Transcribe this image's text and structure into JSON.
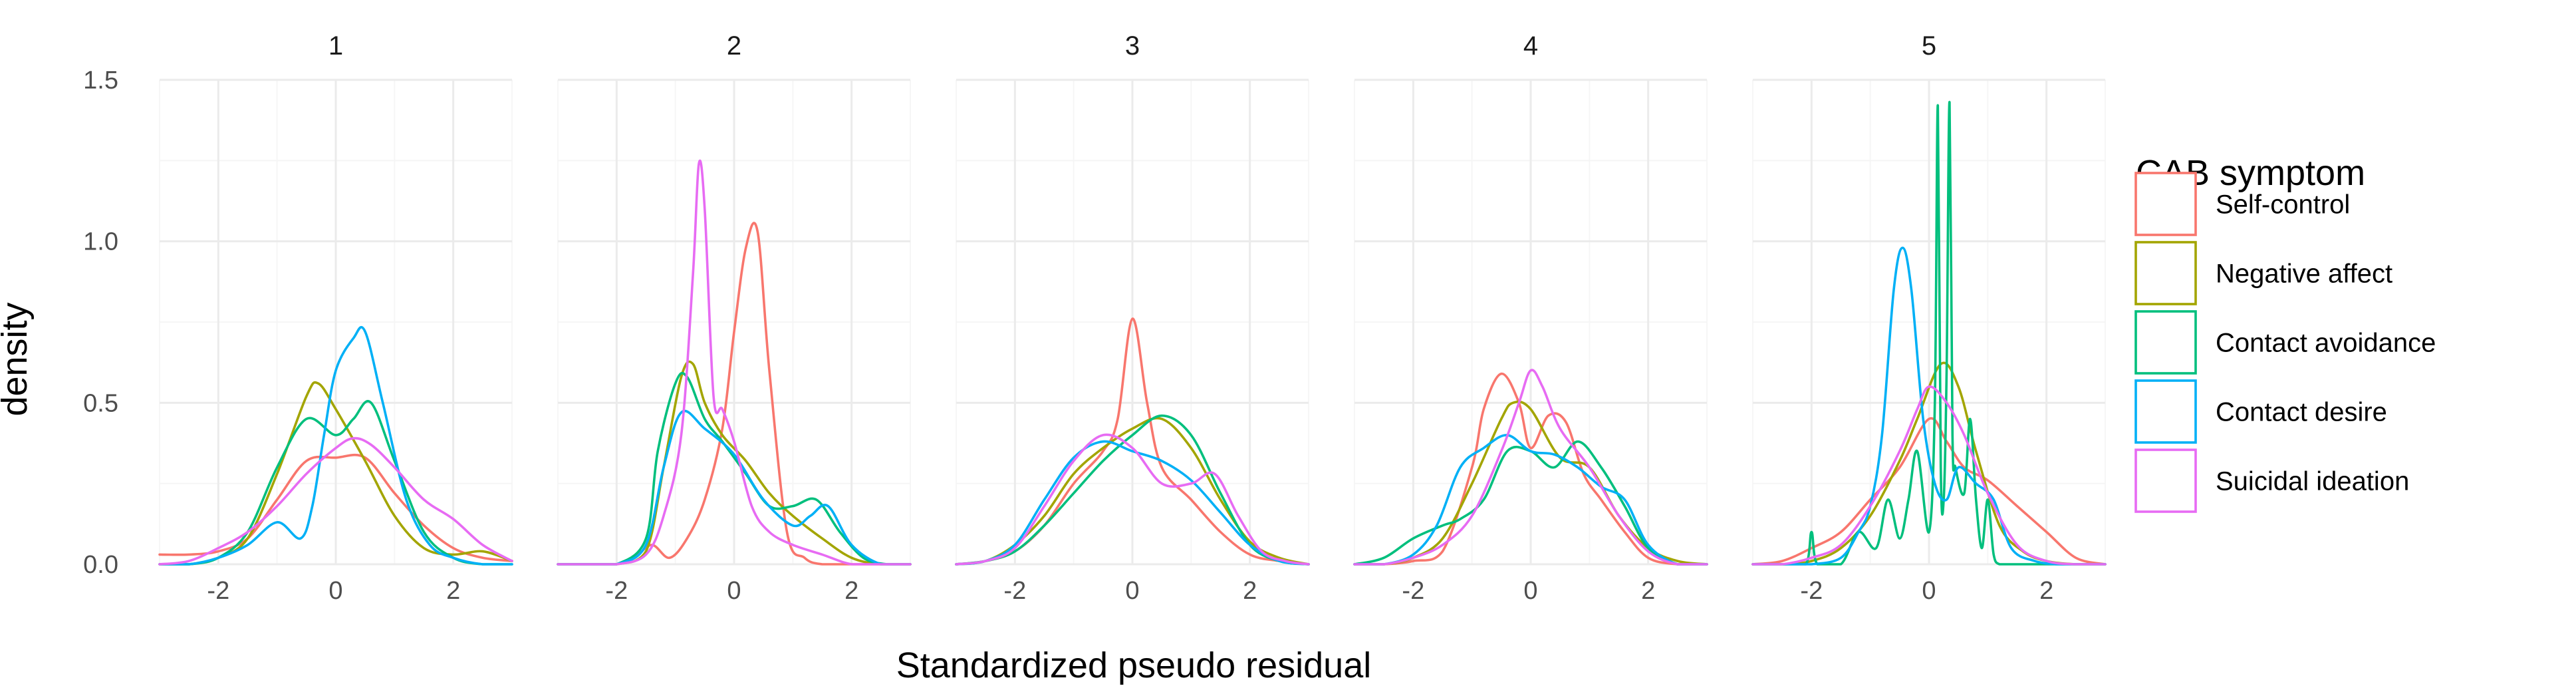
{
  "chart_data": {
    "type": "line",
    "xlabel": "Standardized pseudo residual",
    "ylabel": "density",
    "xlim": [
      -3,
      3
    ],
    "ylim": [
      0,
      1.5
    ],
    "x_ticks": [
      -2,
      0,
      2
    ],
    "x_tick_labels": [
      "-2",
      "0",
      "2"
    ],
    "y_ticks": [
      0,
      0.5,
      1.0,
      1.5
    ],
    "y_tick_labels": [
      "0.0",
      "0.5",
      "1.0",
      "1.5"
    ],
    "grid": true,
    "legend": {
      "title": "CAB symptom",
      "placement": "right",
      "entries": [
        "Self-control",
        "Negative affect",
        "Contact avoidance",
        "Contact desire",
        "Suicidal ideation"
      ]
    },
    "colors": {
      "Self-control": "#F8766D",
      "Negative affect": "#A3A500",
      "Contact avoidance": "#00BF7D",
      "Contact desire": "#00B0F6",
      "Suicidal ideation": "#E76BF3"
    },
    "panels": [
      {
        "label": "1",
        "series": [
          {
            "name": "Self-control",
            "x": [
              -3,
              -2.5,
              -2,
              -1.5,
              -1,
              -0.5,
              0,
              0.5,
              1,
              1.5,
              2,
              2.5,
              3
            ],
            "y": [
              0.03,
              0.03,
              0.04,
              0.08,
              0.2,
              0.32,
              0.33,
              0.33,
              0.22,
              0.12,
              0.05,
              0.02,
              0.01
            ]
          },
          {
            "name": "Negative affect",
            "x": [
              -3,
              -2.5,
              -2,
              -1.5,
              -1,
              -0.5,
              -0.3,
              0,
              0.5,
              1,
              1.5,
              2,
              2.5,
              3
            ],
            "y": [
              0.0,
              0.0,
              0.02,
              0.08,
              0.28,
              0.52,
              0.56,
              0.48,
              0.32,
              0.15,
              0.05,
              0.03,
              0.04,
              0.01
            ]
          },
          {
            "name": "Contact avoidance",
            "x": [
              -3,
              -2.5,
              -2,
              -1.5,
              -1,
              -0.5,
              0,
              0.3,
              0.6,
              1,
              1.5,
              2,
              2.5,
              3
            ],
            "y": [
              0.0,
              0.0,
              0.02,
              0.1,
              0.3,
              0.45,
              0.4,
              0.45,
              0.5,
              0.32,
              0.1,
              0.02,
              0.0,
              0.0
            ]
          },
          {
            "name": "Contact desire",
            "x": [
              -3,
              -2.5,
              -2,
              -1.5,
              -1,
              -0.6,
              -0.4,
              -0.2,
              0,
              0.3,
              0.5,
              0.8,
              1.2,
              1.6,
              2,
              2.5,
              3
            ],
            "y": [
              0.0,
              0.0,
              0.02,
              0.06,
              0.13,
              0.08,
              0.18,
              0.4,
              0.6,
              0.7,
              0.72,
              0.5,
              0.2,
              0.06,
              0.02,
              0.0,
              0.0
            ]
          },
          {
            "name": "Suicidal ideation",
            "x": [
              -3,
              -2.5,
              -2,
              -1.5,
              -1,
              -0.5,
              0,
              0.3,
              0.6,
              1,
              1.5,
              2,
              2.5,
              3
            ],
            "y": [
              0.0,
              0.01,
              0.05,
              0.1,
              0.18,
              0.28,
              0.36,
              0.39,
              0.37,
              0.3,
              0.2,
              0.14,
              0.06,
              0.01
            ]
          }
        ]
      },
      {
        "label": "2",
        "series": [
          {
            "name": "Self-control",
            "x": [
              -3,
              -2.5,
              -2,
              -1.7,
              -1.4,
              -1.1,
              -0.8,
              -0.5,
              -0.2,
              0,
              0.2,
              0.4,
              0.6,
              0.9,
              1.2,
              1.5,
              2,
              2.5,
              3
            ],
            "y": [
              0.0,
              0.0,
              0.0,
              0.02,
              0.06,
              0.02,
              0.08,
              0.2,
              0.42,
              0.72,
              0.98,
              1.03,
              0.6,
              0.1,
              0.02,
              0.0,
              0.0,
              0.0,
              0.0
            ]
          },
          {
            "name": "Negative affect",
            "x": [
              -3,
              -2.5,
              -2,
              -1.5,
              -1.2,
              -0.9,
              -0.7,
              -0.5,
              -0.2,
              0.2,
              0.6,
              1,
              1.5,
              2,
              2.5,
              3
            ],
            "y": [
              0.0,
              0.0,
              0.0,
              0.04,
              0.3,
              0.58,
              0.62,
              0.5,
              0.4,
              0.32,
              0.22,
              0.15,
              0.08,
              0.02,
              0.0,
              0.0
            ]
          },
          {
            "name": "Contact avoidance",
            "x": [
              -3,
              -2.5,
              -2,
              -1.5,
              -1.3,
              -1.0,
              -0.8,
              -0.5,
              -0.2,
              0.2,
              0.6,
              1,
              1.4,
              1.8,
              2.2,
              2.6,
              3
            ],
            "y": [
              0.0,
              0.0,
              0.0,
              0.08,
              0.35,
              0.56,
              0.58,
              0.45,
              0.38,
              0.28,
              0.18,
              0.18,
              0.2,
              0.1,
              0.02,
              0.0,
              0.0
            ]
          },
          {
            "name": "Contact desire",
            "x": [
              -3,
              -2.5,
              -2,
              -1.5,
              -1.2,
              -0.9,
              -0.5,
              0,
              0.5,
              1,
              1.3,
              1.6,
              2,
              2.5,
              3
            ],
            "y": [
              0.0,
              0.0,
              0.0,
              0.06,
              0.3,
              0.47,
              0.42,
              0.34,
              0.2,
              0.12,
              0.15,
              0.18,
              0.06,
              0.0,
              0.0
            ]
          },
          {
            "name": "Suicidal ideation",
            "x": [
              -3,
              -2.5,
              -2,
              -1.5,
              -1.2,
              -0.9,
              -0.7,
              -0.6,
              -0.5,
              -0.35,
              -0.2,
              0,
              0.3,
              0.6,
              1,
              1.5,
              2,
              2.5,
              3
            ],
            "y": [
              0.0,
              0.0,
              0.0,
              0.03,
              0.15,
              0.4,
              0.9,
              1.24,
              1.1,
              0.52,
              0.48,
              0.38,
              0.18,
              0.1,
              0.06,
              0.03,
              0.0,
              0.0,
              0.0
            ]
          }
        ]
      },
      {
        "label": "3",
        "series": [
          {
            "name": "Self-control",
            "x": [
              -3,
              -2.5,
              -2,
              -1.5,
              -1,
              -0.5,
              -0.25,
              0,
              0.25,
              0.5,
              1,
              1.5,
              2,
              2.5,
              3
            ],
            "y": [
              0.0,
              0.01,
              0.04,
              0.12,
              0.25,
              0.35,
              0.45,
              0.76,
              0.5,
              0.3,
              0.2,
              0.1,
              0.03,
              0.01,
              0.0
            ]
          },
          {
            "name": "Negative affect",
            "x": [
              -3,
              -2.5,
              -2,
              -1.5,
              -1,
              -0.5,
              0,
              0.5,
              1,
              1.5,
              2,
              2.5,
              3
            ],
            "y": [
              0.0,
              0.01,
              0.06,
              0.15,
              0.28,
              0.36,
              0.42,
              0.45,
              0.36,
              0.2,
              0.07,
              0.02,
              0.0
            ]
          },
          {
            "name": "Contact avoidance",
            "x": [
              -3,
              -2.5,
              -2,
              -1.5,
              -1,
              -0.5,
              0,
              0.5,
              1,
              1.5,
              2,
              2.5,
              3
            ],
            "y": [
              0.0,
              0.01,
              0.04,
              0.12,
              0.22,
              0.32,
              0.4,
              0.46,
              0.4,
              0.22,
              0.06,
              0.01,
              0.0
            ]
          },
          {
            "name": "Contact desire",
            "x": [
              -3,
              -2.5,
              -2,
              -1.5,
              -1,
              -0.5,
              0,
              0.5,
              1,
              1.5,
              2,
              2.5,
              3
            ],
            "y": [
              0.0,
              0.01,
              0.06,
              0.2,
              0.33,
              0.38,
              0.35,
              0.32,
              0.26,
              0.16,
              0.06,
              0.01,
              0.0
            ]
          },
          {
            "name": "Suicidal ideation",
            "x": [
              -3,
              -2.5,
              -2,
              -1.5,
              -1,
              -0.5,
              0,
              0.5,
              1,
              1.4,
              1.8,
              2.2,
              2.6,
              3
            ],
            "y": [
              0.0,
              0.01,
              0.05,
              0.18,
              0.32,
              0.4,
              0.36,
              0.25,
              0.25,
              0.28,
              0.15,
              0.04,
              0.01,
              0.0
            ]
          }
        ]
      },
      {
        "label": "4",
        "series": [
          {
            "name": "Self-control",
            "x": [
              -3,
              -2.5,
              -2,
              -1.5,
              -1,
              -0.8,
              -0.5,
              -0.2,
              0,
              0.3,
              0.6,
              0.9,
              1.2,
              1.6,
              2,
              2.5,
              3
            ],
            "y": [
              0.0,
              0.0,
              0.01,
              0.04,
              0.3,
              0.48,
              0.59,
              0.5,
              0.36,
              0.46,
              0.44,
              0.28,
              0.2,
              0.1,
              0.02,
              0.0,
              0.0
            ]
          },
          {
            "name": "Negative affect",
            "x": [
              -3,
              -2.5,
              -2,
              -1.5,
              -1,
              -0.5,
              -0.3,
              0,
              0.5,
              1,
              1.5,
              2,
              2.5,
              3
            ],
            "y": [
              0.0,
              0.0,
              0.02,
              0.08,
              0.25,
              0.45,
              0.5,
              0.48,
              0.33,
              0.3,
              0.15,
              0.05,
              0.01,
              0.0
            ]
          },
          {
            "name": "Contact avoidance",
            "x": [
              -3,
              -2.5,
              -2,
              -1.5,
              -1.2,
              -0.8,
              -0.4,
              0,
              0.4,
              0.8,
              1.2,
              1.6,
              2,
              2.5,
              3
            ],
            "y": [
              0.0,
              0.02,
              0.08,
              0.12,
              0.14,
              0.2,
              0.35,
              0.35,
              0.3,
              0.38,
              0.3,
              0.18,
              0.05,
              0.0,
              0.0
            ]
          },
          {
            "name": "Contact desire",
            "x": [
              -3,
              -2.5,
              -2,
              -1.6,
              -1.2,
              -0.8,
              -0.4,
              0,
              0.4,
              0.8,
              1.2,
              1.6,
              2,
              2.5,
              3
            ],
            "y": [
              0.0,
              0.0,
              0.03,
              0.12,
              0.3,
              0.36,
              0.4,
              0.35,
              0.34,
              0.3,
              0.24,
              0.2,
              0.06,
              0.0,
              0.0
            ]
          },
          {
            "name": "Suicidal ideation",
            "x": [
              -3,
              -2.5,
              -2,
              -1.5,
              -1,
              -0.5,
              -0.2,
              0,
              0.2,
              0.5,
              1,
              1.5,
              2,
              2.5,
              3
            ],
            "y": [
              0.0,
              0.0,
              0.02,
              0.06,
              0.15,
              0.35,
              0.5,
              0.6,
              0.55,
              0.42,
              0.3,
              0.15,
              0.04,
              0.0,
              0.0
            ]
          }
        ]
      },
      {
        "label": "5",
        "series": [
          {
            "name": "Self-control",
            "x": [
              -3,
              -2.5,
              -2,
              -1.5,
              -1,
              -0.5,
              0,
              0.3,
              0.6,
              1,
              1.5,
              2,
              2.5,
              3
            ],
            "y": [
              0.0,
              0.01,
              0.05,
              0.1,
              0.2,
              0.3,
              0.45,
              0.38,
              0.3,
              0.26,
              0.18,
              0.1,
              0.02,
              0.0
            ]
          },
          {
            "name": "Negative affect",
            "x": [
              -3,
              -2.5,
              -2,
              -1.5,
              -1,
              -0.5,
              -0.2,
              0.2,
              0.5,
              0.8,
              1.2,
              1.6,
              2,
              2.5,
              3
            ],
            "y": [
              0.0,
              0.0,
              0.01,
              0.05,
              0.15,
              0.32,
              0.45,
              0.62,
              0.55,
              0.35,
              0.12,
              0.04,
              0.01,
              0.0,
              0.0
            ]
          },
          {
            "name": "Contact avoidance",
            "x": [
              -3,
              -2.5,
              -2.1,
              -2.0,
              -1.9,
              -1.5,
              -1.2,
              -0.9,
              -0.7,
              -0.5,
              -0.35,
              -0.2,
              0,
              0.1,
              0.15,
              0.2,
              0.25,
              0.3,
              0.35,
              0.4,
              0.45,
              0.6,
              0.7,
              0.8,
              0.9,
              1.0,
              1.1,
              1.2,
              1.4,
              1.6,
              2,
              2.5,
              3
            ],
            "y": [
              0.0,
              0.0,
              0.0,
              0.1,
              0.0,
              0.0,
              0.1,
              0.05,
              0.2,
              0.08,
              0.2,
              0.35,
              0.1,
              0.5,
              1.42,
              0.3,
              0.2,
              0.6,
              1.43,
              0.4,
              0.3,
              0.22,
              0.45,
              0.2,
              0.05,
              0.2,
              0.03,
              0.0,
              0.0,
              0.0,
              0.0,
              0.0,
              0.0
            ]
          },
          {
            "name": "Contact desire",
            "x": [
              -3,
              -2.5,
              -2,
              -1.5,
              -1.2,
              -1.0,
              -0.8,
              -0.6,
              -0.45,
              -0.3,
              -0.1,
              0.1,
              0.3,
              0.5,
              0.8,
              1.1,
              1.4,
              1.8,
              2.2,
              2.6,
              3
            ],
            "y": [
              0.0,
              0.0,
              0.0,
              0.02,
              0.1,
              0.18,
              0.4,
              0.85,
              0.98,
              0.85,
              0.45,
              0.25,
              0.2,
              0.3,
              0.25,
              0.2,
              0.05,
              0.01,
              0.0,
              0.0,
              0.0
            ]
          },
          {
            "name": "Suicidal ideation",
            "x": [
              -3,
              -2.5,
              -2,
              -1.5,
              -1,
              -0.5,
              -0.2,
              0,
              0.3,
              0.6,
              1,
              1.5,
              2,
              2.5,
              3
            ],
            "y": [
              0.0,
              0.0,
              0.02,
              0.06,
              0.18,
              0.35,
              0.48,
              0.55,
              0.5,
              0.4,
              0.22,
              0.06,
              0.01,
              0.0,
              0.0
            ]
          }
        ]
      }
    ]
  }
}
